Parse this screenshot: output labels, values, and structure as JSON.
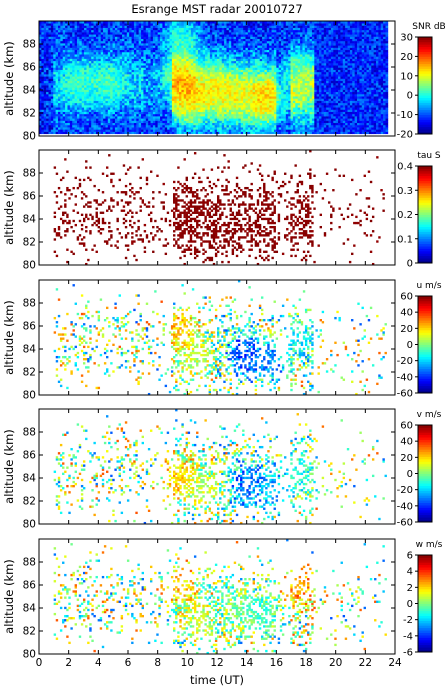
{
  "figure": {
    "title": "Esrange MST radar 20010727",
    "xlabel": "time (UT)"
  },
  "chart_data": [
    {
      "type": "heatmap",
      "title": "Esrange MST radar 20010727",
      "ylabel": "altitude (km)",
      "xlabel": "",
      "xlim": [
        0,
        24
      ],
      "ylim": [
        80,
        90
      ],
      "xticks": [
        0,
        2,
        4,
        6,
        8,
        10,
        12,
        14,
        16,
        18,
        20,
        22,
        24
      ],
      "yticks": [
        80,
        82,
        84,
        86,
        88
      ],
      "colorbar": {
        "label": "SNR dB",
        "range": [
          -20,
          30
        ],
        "ticks": [
          -20,
          -10,
          0,
          10,
          20,
          30
        ]
      },
      "colormap": "jet",
      "coverage": "continuous",
      "seed": 11,
      "features": [
        {
          "time": 2.8,
          "alt": 84.5,
          "value": 8
        },
        {
          "time": 4.7,
          "alt": 84.5,
          "value": 10
        },
        {
          "time": 9.6,
          "alt": 85.5,
          "value": 22
        },
        {
          "time": 9.6,
          "alt": 88.5,
          "value": 14
        },
        {
          "time": 10.2,
          "alt": 83.0,
          "value": 18
        },
        {
          "time": 11.8,
          "alt": 84.5,
          "value": 16
        },
        {
          "time": 13.0,
          "alt": 83.5,
          "value": 14
        },
        {
          "time": 15.2,
          "alt": 83.0,
          "value": 20
        },
        {
          "time": 17.6,
          "alt": 85.5,
          "value": 10
        }
      ]
    },
    {
      "type": "heatmap",
      "ylabel": "altitude (km)",
      "xlabel": "",
      "xlim": [
        0,
        24
      ],
      "ylim": [
        80,
        90
      ],
      "xticks": [
        0,
        2,
        4,
        6,
        8,
        10,
        12,
        14,
        16,
        18,
        20,
        22,
        24
      ],
      "yticks": [
        80,
        82,
        84,
        86,
        88
      ],
      "colorbar": {
        "label": "tau S",
        "range": [
          0,
          0.4
        ],
        "ticks": [
          0,
          0.1,
          0.2,
          0.3,
          0.4
        ]
      },
      "colormap": "jet",
      "coverage": "sparse",
      "value_mode": "high",
      "seed": 23,
      "features": [
        {
          "time": 1.2,
          "alt": 87.8,
          "value": 0.4
        },
        {
          "time": 2.8,
          "alt": 83.0,
          "value": 0.4
        },
        {
          "time": 4.5,
          "alt": 83.5,
          "value": 0.4
        },
        {
          "time": 6.0,
          "alt": 82.5,
          "value": 0.4
        },
        {
          "time": 9.6,
          "alt": 85.0,
          "value": 0.4
        },
        {
          "time": 11.5,
          "alt": 84.5,
          "value": 0.4
        },
        {
          "time": 13.8,
          "alt": 84.0,
          "value": 0.4
        },
        {
          "time": 17.5,
          "alt": 87.0,
          "value": 0.4
        }
      ]
    },
    {
      "type": "heatmap",
      "ylabel": "altitude (km)",
      "xlabel": "",
      "xlim": [
        0,
        24
      ],
      "ylim": [
        80,
        90
      ],
      "xticks": [
        0,
        2,
        4,
        6,
        8,
        10,
        12,
        14,
        16,
        18,
        20,
        22,
        24
      ],
      "yticks": [
        80,
        82,
        84,
        86,
        88
      ],
      "colorbar": {
        "label": "u m/s",
        "range": [
          -60,
          60
        ],
        "ticks": [
          -60,
          -40,
          -20,
          0,
          20,
          40,
          60
        ]
      },
      "colormap": "jet",
      "coverage": "sparse",
      "value_mode": "wind",
      "seed": 37,
      "features": [
        {
          "time": 9.6,
          "alt": 85.5,
          "value": 30
        },
        {
          "time": 10.5,
          "alt": 83.5,
          "value": 10
        },
        {
          "time": 13.8,
          "alt": 83.5,
          "value": -50
        },
        {
          "time": 15.5,
          "alt": 83.0,
          "value": -40
        },
        {
          "time": 17.5,
          "alt": 85.0,
          "value": -20
        }
      ]
    },
    {
      "type": "heatmap",
      "ylabel": "altitude (km)",
      "xlabel": "",
      "xlim": [
        0,
        24
      ],
      "ylim": [
        80,
        90
      ],
      "xticks": [
        0,
        2,
        4,
        6,
        8,
        10,
        12,
        14,
        16,
        18,
        20,
        22,
        24
      ],
      "yticks": [
        80,
        82,
        84,
        86,
        88
      ],
      "colorbar": {
        "label": "v m/s",
        "range": [
          -60,
          60
        ],
        "ticks": [
          -60,
          -40,
          -20,
          0,
          20,
          40,
          60
        ]
      },
      "colormap": "jet",
      "coverage": "sparse",
      "value_mode": "wind",
      "seed": 53,
      "features": [
        {
          "time": 9.3,
          "alt": 84.0,
          "value": 30
        },
        {
          "time": 11.0,
          "alt": 83.0,
          "value": 10
        },
        {
          "time": 14.0,
          "alt": 83.5,
          "value": -45
        },
        {
          "time": 15.8,
          "alt": 83.0,
          "value": -35
        },
        {
          "time": 17.5,
          "alt": 84.5,
          "value": -15
        }
      ]
    },
    {
      "type": "heatmap",
      "ylabel": "altitude (km)",
      "xlabel": "time (UT)",
      "xlim": [
        0,
        24
      ],
      "ylim": [
        80,
        90
      ],
      "xticks": [
        0,
        2,
        4,
        6,
        8,
        10,
        12,
        14,
        16,
        18,
        20,
        22,
        24
      ],
      "yticks": [
        80,
        82,
        84,
        86,
        88
      ],
      "colorbar": {
        "label": "w m/s",
        "range": [
          -6,
          6
        ],
        "ticks": [
          -6,
          -4,
          -2,
          0,
          2,
          4,
          6
        ]
      },
      "colormap": "jet",
      "coverage": "sparse",
      "value_mode": "wind",
      "seed": 71,
      "features": [
        {
          "time": 9.5,
          "alt": 86.0,
          "value": 3
        },
        {
          "time": 10.8,
          "alt": 83.0,
          "value": 1
        },
        {
          "time": 13.5,
          "alt": 84.0,
          "value": 0
        },
        {
          "time": 15.0,
          "alt": 83.5,
          "value": -1
        },
        {
          "time": 17.6,
          "alt": 86.0,
          "value": 4
        }
      ]
    }
  ]
}
